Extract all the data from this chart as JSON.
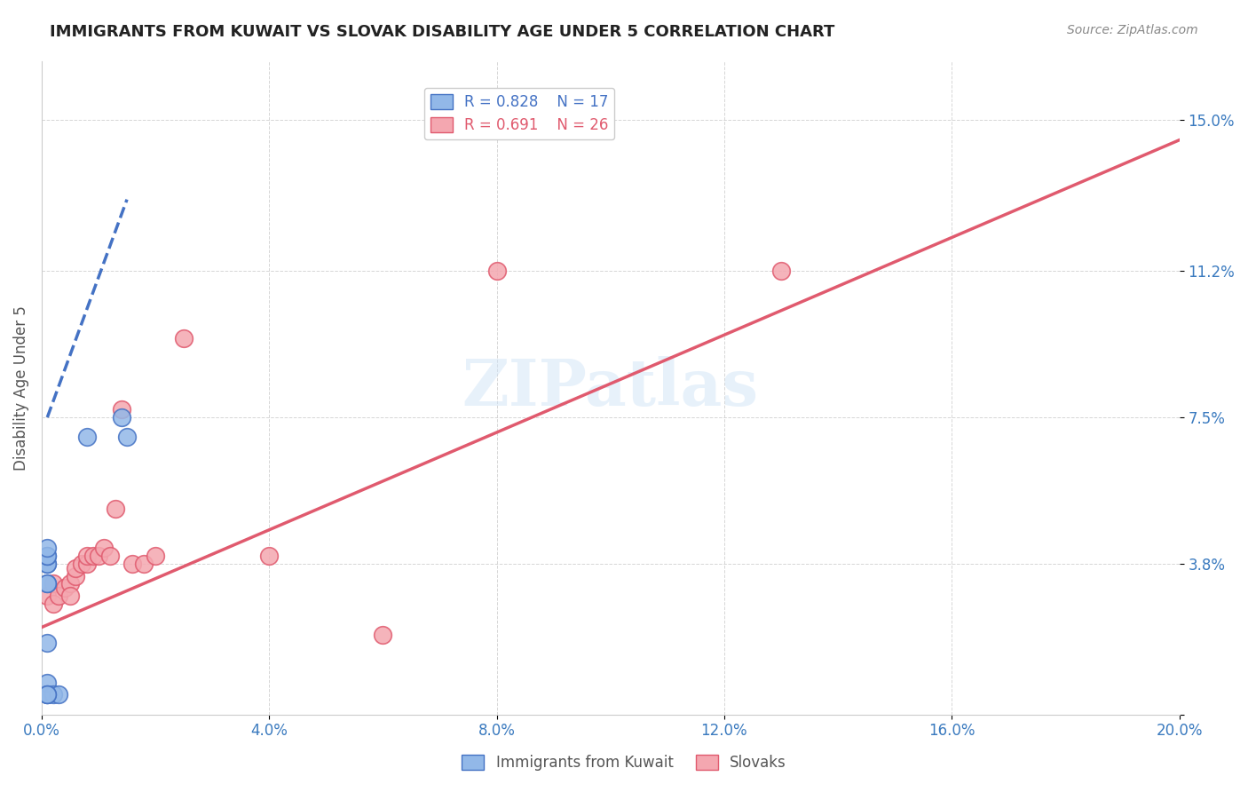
{
  "title": "IMMIGRANTS FROM KUWAIT VS SLOVAK DISABILITY AGE UNDER 5 CORRELATION CHART",
  "source": "Source: ZipAtlas.com",
  "ylabel": "Disability Age Under 5",
  "yticks": [
    0.0,
    0.038,
    0.075,
    0.112,
    0.15
  ],
  "ytick_labels": [
    "",
    "3.8%",
    "7.5%",
    "11.2%",
    "15.0%"
  ],
  "xticks": [
    0.0,
    0.04,
    0.08,
    0.12,
    0.16,
    0.2
  ],
  "xtick_labels": [
    "0.0%",
    "4.0%",
    "8.0%",
    "12.0%",
    "16.0%",
    "20.0%"
  ],
  "xlim": [
    0.0,
    0.2
  ],
  "ylim": [
    0.0,
    0.165
  ],
  "legend_r1": "0.828",
  "legend_n1": "17",
  "legend_r2": "0.691",
  "legend_n2": "26",
  "watermark": "ZIPatlas",
  "blue_color": "#92b8e8",
  "blue_dark": "#4472c4",
  "pink_color": "#f4a7b0",
  "pink_dark": "#e05a6e",
  "kuwait_points_x": [
    0.001,
    0.001,
    0.002,
    0.003,
    0.001,
    0.001,
    0.001,
    0.001,
    0.001,
    0.001,
    0.001,
    0.001,
    0.001,
    0.001,
    0.015,
    0.014,
    0.008
  ],
  "kuwait_points_y": [
    0.005,
    0.008,
    0.005,
    0.005,
    0.005,
    0.033,
    0.033,
    0.038,
    0.038,
    0.04,
    0.04,
    0.042,
    0.005,
    0.018,
    0.07,
    0.075,
    0.07
  ],
  "slovak_points_x": [
    0.001,
    0.002,
    0.002,
    0.003,
    0.004,
    0.005,
    0.005,
    0.006,
    0.006,
    0.007,
    0.008,
    0.008,
    0.009,
    0.01,
    0.011,
    0.012,
    0.013,
    0.014,
    0.016,
    0.018,
    0.02,
    0.025,
    0.04,
    0.06,
    0.13,
    0.08
  ],
  "slovak_points_y": [
    0.03,
    0.028,
    0.033,
    0.03,
    0.032,
    0.033,
    0.03,
    0.035,
    0.037,
    0.038,
    0.038,
    0.04,
    0.04,
    0.04,
    0.042,
    0.04,
    0.052,
    0.077,
    0.038,
    0.038,
    0.04,
    0.095,
    0.04,
    0.02,
    0.112,
    0.112
  ],
  "blue_line_x": [
    0.001,
    0.015
  ],
  "blue_line_y": [
    0.075,
    0.13
  ],
  "pink_line_x": [
    0.0,
    0.2
  ],
  "pink_line_y": [
    0.022,
    0.145
  ]
}
